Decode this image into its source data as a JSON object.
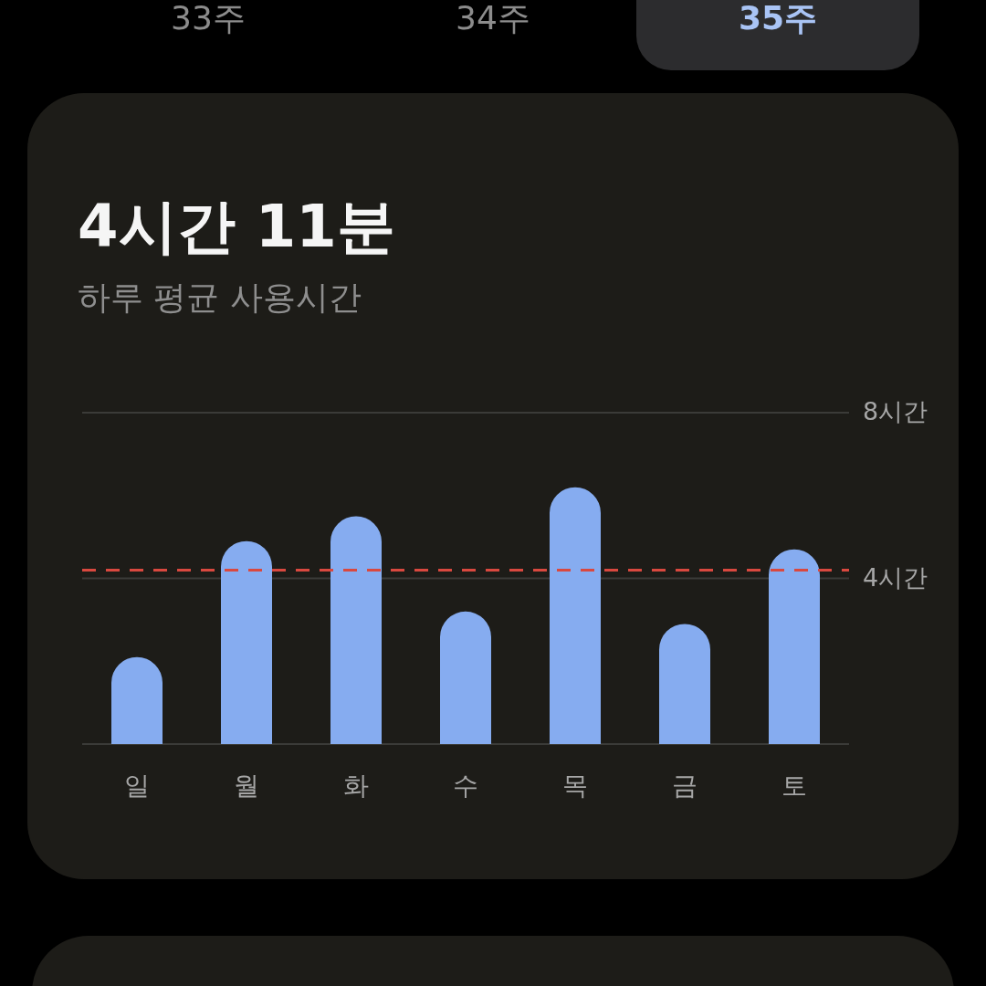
{
  "chart_data": {
    "type": "bar",
    "title": "4시간 11분",
    "subtitle": "하루 평균 사용시간",
    "annotations": [
      "33주",
      "34주",
      "35주"
    ],
    "categories": [
      "일",
      "월",
      "화",
      "수",
      "목",
      "금",
      "토"
    ],
    "values": [
      2.1,
      4.9,
      5.5,
      3.2,
      6.2,
      2.9,
      4.7
    ],
    "color": "#86acf0",
    "ylim": [
      0,
      8
    ],
    "yticks": [
      {
        "value": 4,
        "label": "4시간"
      },
      {
        "value": 8,
        "label": "8시간"
      }
    ],
    "grid": "y",
    "ref_lines": [
      {
        "axis": "y",
        "value": 4.2,
        "color": "#d9483f",
        "line_style": "dashed"
      }
    ]
  }
}
